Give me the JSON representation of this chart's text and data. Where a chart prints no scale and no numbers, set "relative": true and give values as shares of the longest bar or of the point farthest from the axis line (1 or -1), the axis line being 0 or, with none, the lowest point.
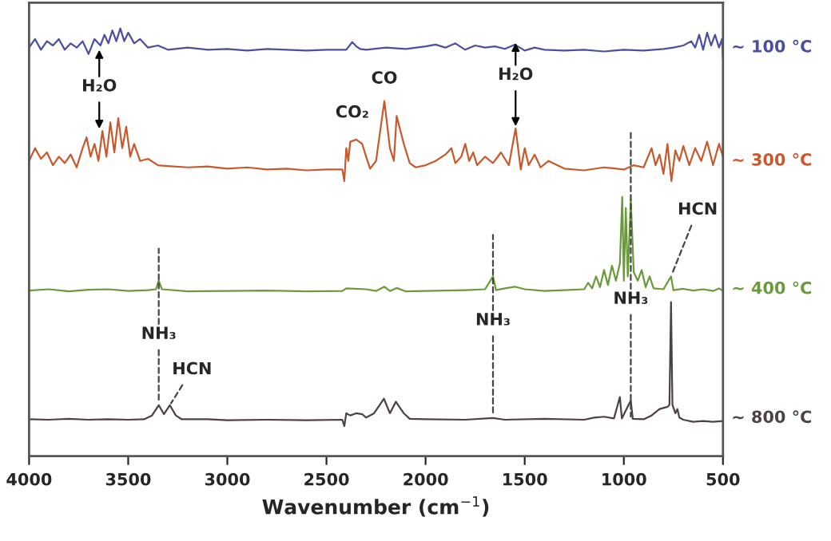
{
  "chart_data": {
    "type": "line",
    "relative": true,
    "xlabel": "Wavenumber (cm$^{−1}$)",
    "xlim": [
      4000,
      500
    ],
    "xticks": [
      4000,
      3500,
      3000,
      2500,
      2000,
      1500,
      1000,
      500
    ],
    "tick_labels": "x",
    "grid": false,
    "legend": false,
    "marker": "none",
    "line_style": "solid",
    "series": [
      {
        "name": "~ 100 °C",
        "color": "#4b4f9e",
        "x": [
          4000,
          3970,
          3940,
          3910,
          3880,
          3850,
          3820,
          3790,
          3760,
          3730,
          3700,
          3670,
          3640,
          3620,
          3600,
          3580,
          3560,
          3540,
          3520,
          3500,
          3470,
          3440,
          3400,
          3350,
          3300,
          3200,
          3100,
          3000,
          2900,
          2800,
          2700,
          2600,
          2500,
          2400,
          2370,
          2350,
          2330,
          2300,
          2200,
          2100,
          2000,
          1950,
          1900,
          1850,
          1800,
          1750,
          1700,
          1650,
          1600,
          1550,
          1500,
          1450,
          1400,
          1300,
          1200,
          1100,
          1000,
          900,
          800,
          750,
          700,
          660,
          640,
          620,
          600,
          580,
          560,
          540,
          520,
          505,
          500
        ],
        "values": [
          0.955,
          0.975,
          0.95,
          0.97,
          0.96,
          0.975,
          0.95,
          0.965,
          0.955,
          0.97,
          0.94,
          0.975,
          0.96,
          0.985,
          0.965,
          0.995,
          0.97,
          1.0,
          0.97,
          0.99,
          0.965,
          0.975,
          0.955,
          0.96,
          0.95,
          0.955,
          0.95,
          0.952,
          0.948,
          0.952,
          0.95,
          0.948,
          0.95,
          0.95,
          0.968,
          0.958,
          0.952,
          0.95,
          0.955,
          0.952,
          0.958,
          0.962,
          0.955,
          0.965,
          0.95,
          0.96,
          0.955,
          0.958,
          0.952,
          0.962,
          0.948,
          0.955,
          0.95,
          0.948,
          0.95,
          0.946,
          0.95,
          0.948,
          0.952,
          0.955,
          0.96,
          0.97,
          0.955,
          0.985,
          0.95,
          0.99,
          0.96,
          0.985,
          0.955,
          0.975,
          0.93
        ]
      },
      {
        "name": "~ 300 °C",
        "color": "#c9592d",
        "x": [
          4000,
          3970,
          3940,
          3910,
          3880,
          3850,
          3820,
          3790,
          3760,
          3730,
          3710,
          3690,
          3670,
          3650,
          3630,
          3610,
          3590,
          3570,
          3550,
          3530,
          3510,
          3490,
          3470,
          3440,
          3400,
          3350,
          3300,
          3200,
          3100,
          3000,
          2900,
          2800,
          2700,
          2600,
          2500,
          2420,
          2410,
          2400,
          2390,
          2380,
          2350,
          2320,
          2300,
          2280,
          2250,
          2208,
          2180,
          2160,
          2146,
          2110,
          2080,
          2050,
          2000,
          1950,
          1900,
          1870,
          1850,
          1820,
          1800,
          1780,
          1760,
          1740,
          1700,
          1660,
          1620,
          1580,
          1546,
          1520,
          1500,
          1480,
          1450,
          1420,
          1380,
          1300,
          1200,
          1100,
          1000,
          950,
          900,
          860,
          840,
          820,
          800,
          780,
          760,
          740,
          720,
          700,
          670,
          640,
          610,
          580,
          550,
          520,
          500
        ],
        "values": [
          0.69,
          0.72,
          0.695,
          0.71,
          0.68,
          0.7,
          0.685,
          0.705,
          0.675,
          0.72,
          0.745,
          0.7,
          0.73,
          0.69,
          0.76,
          0.7,
          0.78,
          0.71,
          0.79,
          0.72,
          0.77,
          0.7,
          0.73,
          0.69,
          0.695,
          0.68,
          0.678,
          0.675,
          0.677,
          0.672,
          0.675,
          0.67,
          0.672,
          0.668,
          0.67,
          0.67,
          0.643,
          0.72,
          0.69,
          0.735,
          0.74,
          0.73,
          0.7,
          0.672,
          0.69,
          0.83,
          0.72,
          0.69,
          0.795,
          0.73,
          0.685,
          0.675,
          0.68,
          0.69,
          0.705,
          0.72,
          0.685,
          0.7,
          0.73,
          0.69,
          0.71,
          0.68,
          0.7,
          0.685,
          0.71,
          0.68,
          0.766,
          0.67,
          0.72,
          0.68,
          0.705,
          0.675,
          0.69,
          0.672,
          0.668,
          0.675,
          0.67,
          0.68,
          0.675,
          0.72,
          0.68,
          0.705,
          0.66,
          0.73,
          0.643,
          0.715,
          0.69,
          0.725,
          0.68,
          0.72,
          0.69,
          0.735,
          0.68,
          0.73,
          0.7
        ]
      },
      {
        "name": "~ 400 °C",
        "color": "#6a9a3a",
        "x": [
          4000,
          3900,
          3800,
          3700,
          3600,
          3500,
          3400,
          3360,
          3346,
          3330,
          3200,
          3000,
          2800,
          2600,
          2420,
          2400,
          2300,
          2250,
          2208,
          2180,
          2146,
          2100,
          2000,
          1800,
          1700,
          1660,
          1645,
          1600,
          1550,
          1500,
          1400,
          1300,
          1200,
          1180,
          1160,
          1140,
          1120,
          1100,
          1080,
          1060,
          1040,
          1020,
          1008,
          1000,
          990,
          980,
          965,
          950,
          930,
          910,
          890,
          870,
          850,
          800,
          762,
          750,
          700,
          650,
          600,
          550,
          520,
          500
        ],
        "values": [
          0.387,
          0.39,
          0.385,
          0.389,
          0.39,
          0.386,
          0.388,
          0.39,
          0.41,
          0.39,
          0.385,
          0.386,
          0.387,
          0.385,
          0.386,
          0.392,
          0.39,
          0.386,
          0.396,
          0.386,
          0.393,
          0.385,
          0.386,
          0.388,
          0.39,
          0.42,
          0.388,
          0.392,
          0.396,
          0.39,
          0.386,
          0.388,
          0.39,
          0.405,
          0.392,
          0.42,
          0.395,
          0.435,
          0.4,
          0.445,
          0.41,
          0.45,
          0.606,
          0.41,
          0.58,
          0.42,
          0.6,
          0.43,
          0.41,
          0.435,
          0.395,
          0.42,
          0.392,
          0.39,
          0.42,
          0.388,
          0.391,
          0.387,
          0.39,
          0.386,
          0.392,
          0.386
        ]
      },
      {
        "name": "~ 800 °C",
        "color": "#4d4242",
        "x": [
          4000,
          3900,
          3800,
          3700,
          3600,
          3500,
          3420,
          3380,
          3346,
          3320,
          3290,
          3260,
          3230,
          3100,
          3000,
          2800,
          2600,
          2420,
          2410,
          2400,
          2380,
          2350,
          2320,
          2300,
          2260,
          2210,
          2180,
          2150,
          2110,
          2080,
          2000,
          1800,
          1660,
          1600,
          1400,
          1200,
          1150,
          1100,
          1050,
          1020,
          1010,
          965,
          955,
          900,
          860,
          820,
          780,
          770,
          762,
          755,
          740,
          730,
          720,
          700,
          650,
          600,
          550,
          500
        ],
        "values": [
          0.086,
          0.085,
          0.087,
          0.085,
          0.086,
          0.085,
          0.086,
          0.095,
          0.119,
          0.098,
          0.119,
          0.095,
          0.086,
          0.086,
          0.084,
          0.085,
          0.084,
          0.085,
          0.07,
          0.1,
          0.095,
          0.1,
          0.098,
          0.09,
          0.1,
          0.134,
          0.1,
          0.127,
          0.1,
          0.087,
          0.086,
          0.085,
          0.089,
          0.085,
          0.087,
          0.085,
          0.09,
          0.092,
          0.088,
          0.138,
          0.088,
          0.13,
          0.087,
          0.086,
          0.095,
          0.11,
          0.115,
          0.12,
          0.36,
          0.12,
          0.1,
          0.11,
          0.09,
          0.085,
          0.08,
          0.082,
          0.08,
          0.082
        ]
      }
    ],
    "annotations": [
      {
        "text": "H₂O",
        "x": 3646,
        "y": 0.76
      },
      {
        "text": "CO₂",
        "x": 2370,
        "y": 0.74
      },
      {
        "text": "CO",
        "x": 2208,
        "y": 0.83
      },
      {
        "text": "H₂O",
        "x": 1546,
        "y": 0.766
      },
      {
        "text": "HCN",
        "x": 762,
        "y": 0.42
      },
      {
        "text": "NH₃",
        "x": 3346,
        "y": 0.119
      },
      {
        "text": "HCN",
        "x": 3290,
        "y": 0.119
      },
      {
        "text": "NH₃",
        "x": 1660,
        "y": 0.089
      },
      {
        "text": "NH₃",
        "x": 965,
        "y": 0.087
      }
    ]
  }
}
